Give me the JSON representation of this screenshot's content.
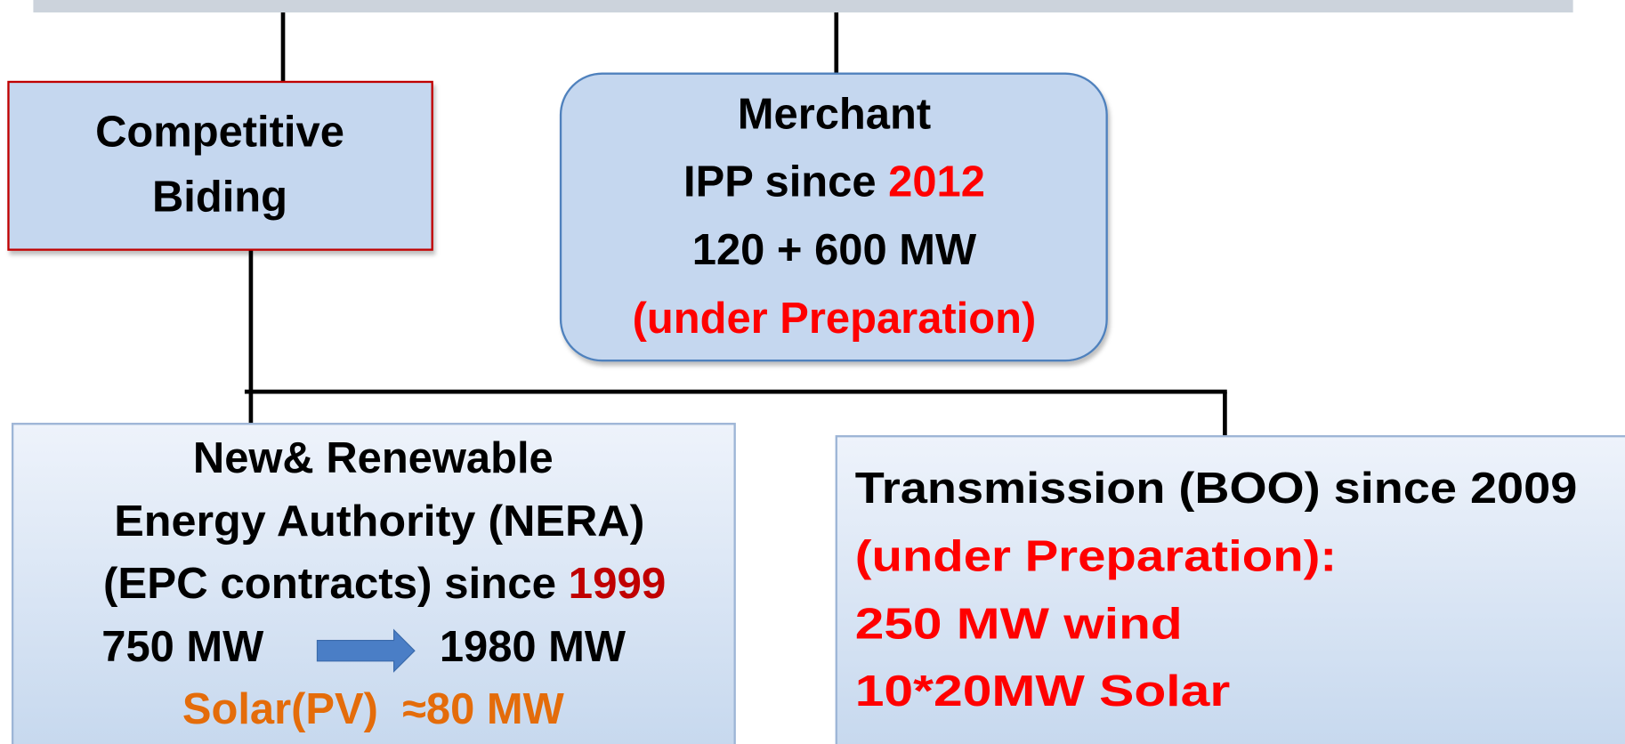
{
  "competitive": {
    "lines": [
      "Competitive",
      "Biding"
    ]
  },
  "merchant": {
    "title": "Merchant",
    "since": "IPP since ",
    "year": "2012",
    "capacity": "120 + 600 MW",
    "status": "(under Preparation)"
  },
  "nera": {
    "line1": "New& Renewable",
    "line2": "Energy Authority (NERA)",
    "since": "(EPC contracts) since ",
    "year": "1999",
    "from": "750 MW",
    "to": "1980 MW",
    "solar": "Solar(PV)  ≈80 MW"
  },
  "transmission": {
    "line1": "Transmission (BOO) since 2009",
    "status": "(under Preparation):",
    "wind": "250 MW wind",
    "solar": "10*20MW Solar"
  }
}
